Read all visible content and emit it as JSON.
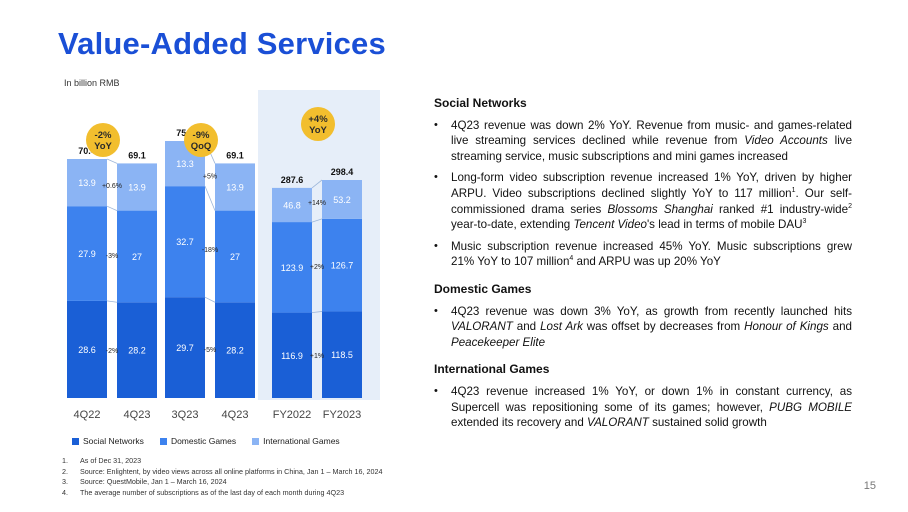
{
  "title": "Value-Added Services",
  "unit": "In billion RMB",
  "legend": [
    {
      "label": "Social Networks",
      "color": "#1a5fd6"
    },
    {
      "label": "Domestic Games",
      "color": "#3d82ee"
    },
    {
      "label": "International Games",
      "color": "#8bb4f4"
    }
  ],
  "chart_data": [
    {
      "type": "bar",
      "stacked": true,
      "categories": [
        "4Q22",
        "4Q23"
      ],
      "series": [
        {
          "name": "Social Networks",
          "values": [
            28.6,
            28.2
          ]
        },
        {
          "name": "Domestic Games",
          "values": [
            27.9,
            27.0
          ]
        },
        {
          "name": "International Games",
          "values": [
            13.9,
            13.9
          ]
        }
      ],
      "totals": [
        70.4,
        69.1
      ],
      "changes": [
        "-2%",
        "-3%",
        "+0.6%"
      ],
      "badge": "-2%\nYoY"
    },
    {
      "type": "bar",
      "stacked": true,
      "categories": [
        "3Q23",
        "4Q23"
      ],
      "series": [
        {
          "name": "Social Networks",
          "values": [
            29.7,
            28.2
          ]
        },
        {
          "name": "Domestic Games",
          "values": [
            32.7,
            27.0
          ]
        },
        {
          "name": "International Games",
          "values": [
            13.3,
            13.9
          ]
        }
      ],
      "totals": [
        75.7,
        69.1
      ],
      "changes": [
        "-5%",
        "-18%",
        "+5%"
      ],
      "badge": "-9%\nQoQ"
    },
    {
      "type": "bar",
      "stacked": true,
      "categories": [
        "FY2022",
        "FY2023"
      ],
      "series": [
        {
          "name": "Social Networks",
          "values": [
            116.9,
            118.5
          ]
        },
        {
          "name": "Domestic Games",
          "values": [
            123.9,
            126.7
          ]
        },
        {
          "name": "International Games",
          "values": [
            46.8,
            53.2
          ]
        }
      ],
      "totals": [
        287.6,
        298.4
      ],
      "changes": [
        "+1%",
        "+2%",
        "+14%"
      ],
      "badge": "+4%\nYoY"
    }
  ],
  "sections": {
    "social": {
      "heading": "Social Networks",
      "bullets": [
        "4Q23 revenue was down 2% YoY. Revenue from music- and games-related live streaming services declined while revenue from <i>Video Accounts</i> live streaming service, music subscriptions and mini games increased",
        "Long-form video subscription revenue increased 1% YoY, driven by higher ARPU. Video subscriptions declined slightly YoY to 117 million<sup>1</sup>. Our self-commissioned drama series <i>Blossoms Shanghai</i> ranked #1 industry-wide<sup>2</sup> year-to-date, extending <i>Tencent Video</i>'s lead in terms of mobile DAU<sup>3</sup>",
        "Music subscription revenue increased 45% YoY. Music subscriptions grew 21% YoY to 107 million<sup>4</sup> and ARPU was up 20% YoY"
      ]
    },
    "domestic": {
      "heading": "Domestic Games",
      "bullets": [
        "4Q23 revenue was down 3% YoY, as growth from recently launched hits <i>VALORANT</i> and <i>Lost Ark</i> was offset by decreases from <i>Honour of Kings</i> and <i>Peacekeeper Elite</i>"
      ]
    },
    "international": {
      "heading": "International Games",
      "bullets": [
        "4Q23 revenue increased 1% YoY, or down 1% in constant currency, as Supercell was repositioning some of its games; however, <i>PUBG MOBILE</i> extended its recovery and <i>VALORANT</i> sustained solid growth"
      ]
    }
  },
  "footnotes": [
    {
      "num": "1.",
      "text": "As of Dec 31, 2023"
    },
    {
      "num": "2.",
      "text": "Source: Enlightent, by video views across all online platforms in China, Jan 1 – March 16, 2024"
    },
    {
      "num": "3.",
      "text": "Source: QuestMobile, Jan 1 – March 16, 2024"
    },
    {
      "num": "4.",
      "text": "The average number of subscriptions as of the last day of each month during 4Q23"
    }
  ],
  "page_number": "15"
}
